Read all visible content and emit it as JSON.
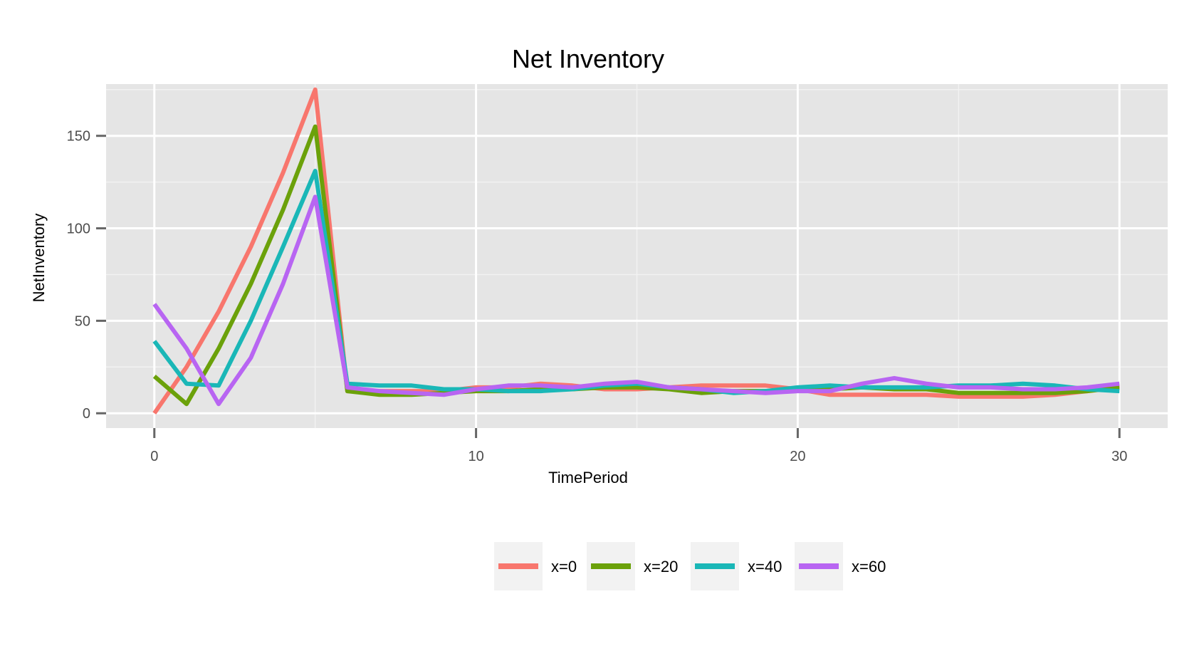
{
  "chart_data": {
    "type": "line",
    "title": "Net Inventory",
    "xlabel": "TimePeriod",
    "ylabel": "NetInventory",
    "xlim": [
      -1.5,
      31.5
    ],
    "ylim": [
      -8,
      178
    ],
    "x_ticks": [
      0,
      10,
      20,
      30
    ],
    "y_ticks": [
      0,
      50,
      100,
      150
    ],
    "x_tick_labels": [
      "0",
      "10",
      "20",
      "30"
    ],
    "y_tick_labels": [
      "0",
      "50",
      "100",
      "150"
    ],
    "grid": true,
    "legend_position": "bottom",
    "x": [
      0,
      1,
      2,
      3,
      4,
      5,
      6,
      7,
      8,
      9,
      10,
      11,
      12,
      13,
      14,
      15,
      16,
      17,
      18,
      19,
      20,
      21,
      22,
      23,
      24,
      25,
      26,
      27,
      28,
      29,
      30
    ],
    "series": [
      {
        "name": "x=0",
        "color": "#f8766d",
        "values": [
          0,
          25,
          55,
          90,
          130,
          175,
          12,
          12,
          12,
          12,
          14,
          14,
          16,
          15,
          13,
          13,
          14,
          15,
          15,
          15,
          13,
          10,
          10,
          10,
          10,
          9,
          9,
          9,
          10,
          12,
          15
        ]
      },
      {
        "name": "x=20",
        "color": "#6ba10a",
        "values": [
          20,
          5,
          35,
          70,
          110,
          155,
          12,
          10,
          10,
          11,
          12,
          12,
          13,
          13,
          14,
          14,
          13,
          11,
          12,
          12,
          13,
          13,
          14,
          13,
          13,
          11,
          11,
          11,
          11,
          12,
          14
        ]
      },
      {
        "name": "x=40",
        "color": "#1ab7b7",
        "values": [
          39,
          16,
          15,
          50,
          90,
          131,
          16,
          15,
          15,
          13,
          13,
          12,
          12,
          13,
          15,
          16,
          14,
          13,
          11,
          12,
          14,
          15,
          14,
          14,
          14,
          15,
          15,
          16,
          15,
          13,
          12
        ]
      },
      {
        "name": "x=60",
        "color": "#b865f2",
        "values": [
          59,
          35,
          5,
          30,
          70,
          117,
          14,
          12,
          11,
          10,
          13,
          15,
          15,
          14,
          16,
          17,
          14,
          13,
          12,
          11,
          12,
          12,
          16,
          19,
          16,
          14,
          14,
          13,
          13,
          14,
          16
        ]
      }
    ]
  }
}
